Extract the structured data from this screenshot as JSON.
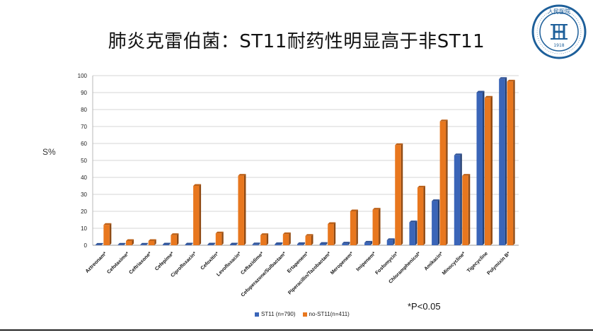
{
  "slide": {
    "title": "肺炎克雷伯菌：ST11耐药性明显高于非ST11",
    "note": "*P<0.05"
  },
  "logo": {
    "top_text": "人民医院",
    "year": "1918",
    "icon": "hospital-seal-icon",
    "color": "#1d5f9a"
  },
  "chart_data": {
    "type": "bar",
    "ylabel": "S%",
    "ylim": [
      0,
      100
    ],
    "yticks": [
      0,
      10,
      20,
      30,
      40,
      50,
      60,
      70,
      80,
      90,
      100
    ],
    "grid": true,
    "legend_position": "bottom",
    "categories": [
      "Aztreonam*",
      "Cefotaxime*",
      "Ceftriaxone*",
      "Cefepime*",
      "Ciprofloxacin*",
      "Cefoxitin*",
      "Levofloxacin*",
      "Ceftazidime*",
      "Cefoperazone/Sulbactam*",
      "Ertapenem*",
      "Piperacillin/Tazobactam*",
      "Meropenem*",
      "Imipenem*",
      "Fosfomycin*",
      "Chloramphenicol*",
      "Amikacin*",
      "Minocycline*",
      "Tigecycline",
      "Polymixin B*"
    ],
    "series": [
      {
        "name": "ST11 (n=790)",
        "color": "#3a65b8",
        "values": [
          0.2,
          0.3,
          0.3,
          0.4,
          0.4,
          0.4,
          0.4,
          0.5,
          0.6,
          0.7,
          0.8,
          1.0,
          1.5,
          3.0,
          13.5,
          26,
          53,
          90,
          98
        ]
      },
      {
        "name": "no-ST11(n=411)",
        "color": "#e8771e",
        "values": [
          12,
          2.5,
          2.5,
          6,
          35,
          7,
          41,
          6,
          6.5,
          5.5,
          12.5,
          20,
          21,
          59,
          34,
          73,
          41,
          87,
          96.5
        ]
      }
    ]
  }
}
